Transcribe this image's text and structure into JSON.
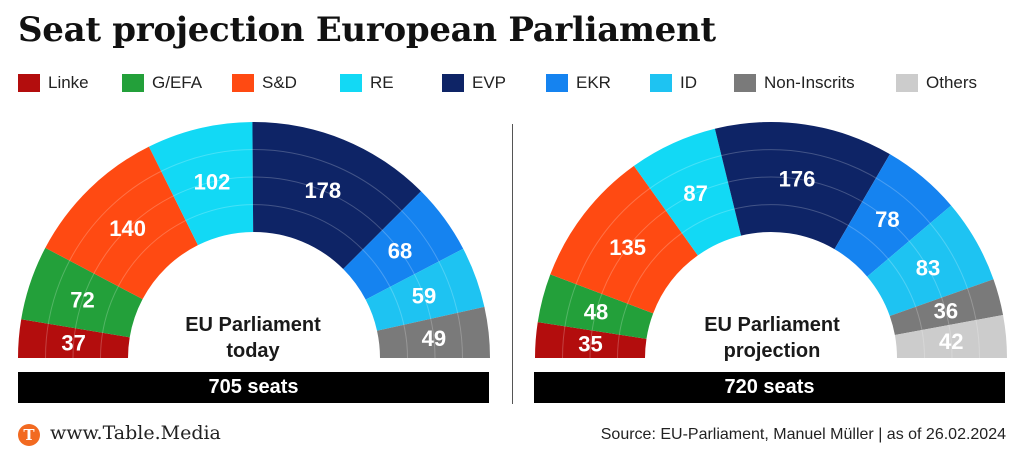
{
  "header": {
    "title": "Seat projection European Parliament"
  },
  "legend": [
    {
      "label": "Linke",
      "color": "#b30d0d"
    },
    {
      "label": "G/EFA",
      "color": "#23a03a"
    },
    {
      "label": "S&D",
      "color": "#ff4a12"
    },
    {
      "label": "RE",
      "color": "#12d9f5"
    },
    {
      "label": "EVP",
      "color": "#0e2466"
    },
    {
      "label": "EKR",
      "color": "#1583f0"
    },
    {
      "label": "ID",
      "color": "#1ec3f2"
    },
    {
      "label": "Non-Inscrits",
      "color": "#7a7a7a"
    },
    {
      "label": "Others",
      "color": "#cccccc"
    }
  ],
  "chart_data": [
    {
      "type": "pie",
      "subtype": "parliament-hemicycle",
      "center_label_line1": "EU Parliament",
      "center_label_line2": "today",
      "total_label": "705 seats",
      "categories": [
        "Linke",
        "G/EFA",
        "S&D",
        "RE",
        "EVP",
        "EKR",
        "ID",
        "Non-Inscrits"
      ],
      "values": [
        37,
        72,
        140,
        102,
        178,
        68,
        59,
        49
      ],
      "colors": [
        "#b30d0d",
        "#23a03a",
        "#ff4a12",
        "#12d9f5",
        "#0e2466",
        "#1583f0",
        "#1ec3f2",
        "#7a7a7a"
      ]
    },
    {
      "type": "pie",
      "subtype": "parliament-hemicycle",
      "center_label_line1": "EU Parliament",
      "center_label_line2": "projection",
      "total_label": "720 seats",
      "categories": [
        "Linke",
        "G/EFA",
        "S&D",
        "RE",
        "EVP",
        "EKR",
        "ID",
        "Non-Inscrits",
        "Others"
      ],
      "values": [
        35,
        48,
        135,
        87,
        176,
        78,
        83,
        36,
        42
      ],
      "colors": [
        "#b30d0d",
        "#23a03a",
        "#ff4a12",
        "#12d9f5",
        "#0e2466",
        "#1583f0",
        "#1ec3f2",
        "#7a7a7a",
        "#cccccc"
      ]
    }
  ],
  "footer": {
    "logo_letter": "T",
    "site": "www.Table.Media",
    "source": "Source: EU-Parliament, Manuel Müller | as of 26.02.2024"
  }
}
